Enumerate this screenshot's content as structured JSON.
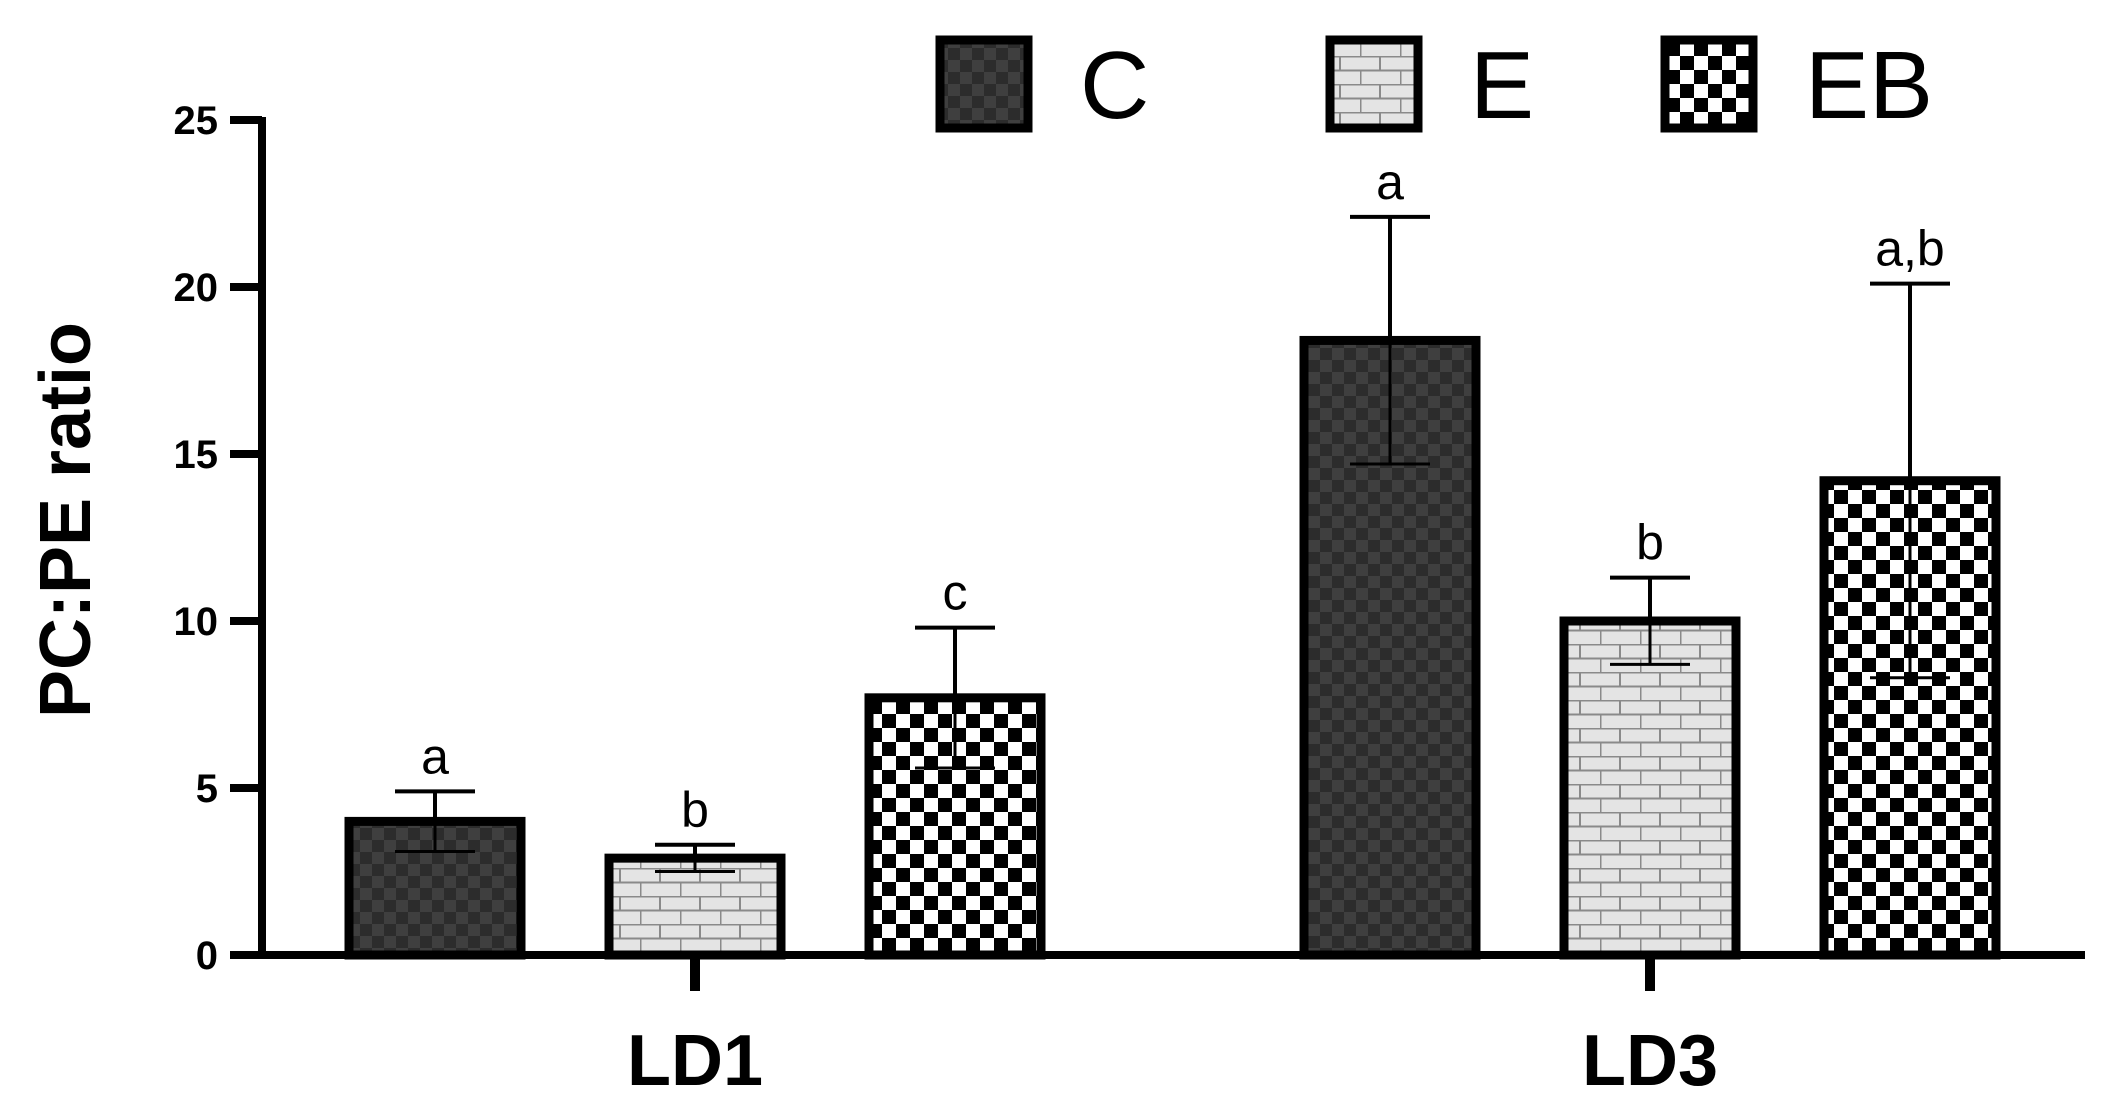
{
  "chart_data": {
    "type": "bar",
    "ylabel": "PC:PE ratio",
    "xlabel": "",
    "ylim": [
      0,
      25
    ],
    "yticks": [
      0,
      5,
      10,
      15,
      20,
      25
    ],
    "grid": false,
    "legend_position": "top-right",
    "categories": [
      "LD1",
      "LD3"
    ],
    "series": [
      {
        "name": "C",
        "values": [
          4.0,
          18.4
        ],
        "errors": [
          0.9,
          3.7
        ],
        "labels": [
          "a",
          "a"
        ],
        "pattern": "dark-checker",
        "color": "#2e2e2e"
      },
      {
        "name": "E",
        "values": [
          2.9,
          10.0
        ],
        "errors": [
          0.4,
          1.3
        ],
        "labels": [
          "b",
          "b"
        ],
        "pattern": "brick",
        "color": "#e2e2e2"
      },
      {
        "name": "EB",
        "values": [
          7.7,
          14.2
        ],
        "errors": [
          2.1,
          5.9
        ],
        "labels": [
          "c",
          "a,b"
        ],
        "pattern": "checker",
        "color": "#000000"
      }
    ]
  }
}
